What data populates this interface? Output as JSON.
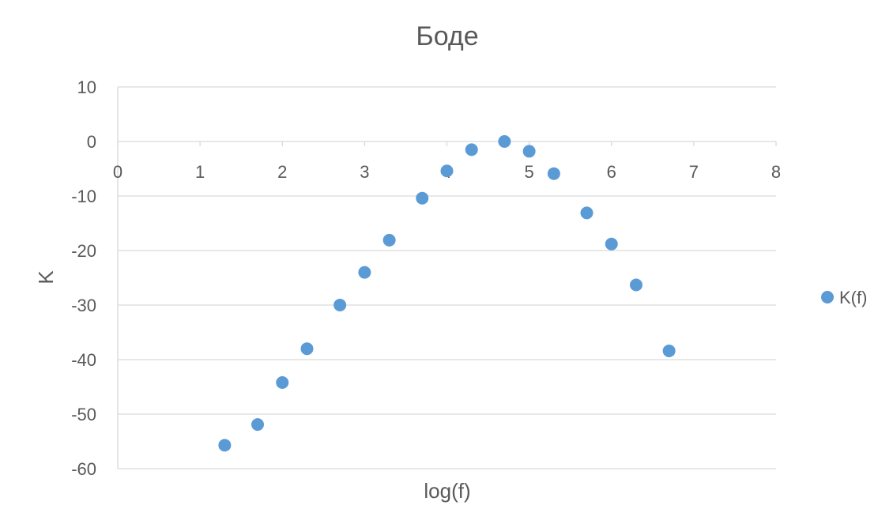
{
  "chart_data": {
    "type": "scatter",
    "title": "Боде",
    "xlabel": "log(f)",
    "ylabel": "K",
    "xlim": [
      0,
      8
    ],
    "ylim": [
      -60,
      10
    ],
    "x_ticks": [
      "0",
      "1",
      "2",
      "3",
      "4",
      "5",
      "6",
      "7",
      "8"
    ],
    "y_ticks": [
      "10",
      "0",
      "-10",
      "-20",
      "-30",
      "-40",
      "-50",
      "-60"
    ],
    "grid": "horizontal",
    "legend_position": "right",
    "series": [
      {
        "name": "K(f)",
        "color": "#5b9bd5",
        "points": [
          {
            "x": 1.3,
            "y": -55.7
          },
          {
            "x": 1.7,
            "y": -51.9
          },
          {
            "x": 2.0,
            "y": -44.2
          },
          {
            "x": 2.3,
            "y": -38.0
          },
          {
            "x": 2.7,
            "y": -30.0
          },
          {
            "x": 3.0,
            "y": -24.0
          },
          {
            "x": 3.3,
            "y": -18.1
          },
          {
            "x": 3.7,
            "y": -10.4
          },
          {
            "x": 4.0,
            "y": -5.4
          },
          {
            "x": 4.3,
            "y": -1.5
          },
          {
            "x": 4.7,
            "y": 0.0
          },
          {
            "x": 5.0,
            "y": -1.8
          },
          {
            "x": 5.3,
            "y": -5.9
          },
          {
            "x": 5.7,
            "y": -13.1
          },
          {
            "x": 6.0,
            "y": -18.8
          },
          {
            "x": 6.3,
            "y": -26.3
          },
          {
            "x": 6.7,
            "y": -38.4
          }
        ]
      }
    ]
  }
}
